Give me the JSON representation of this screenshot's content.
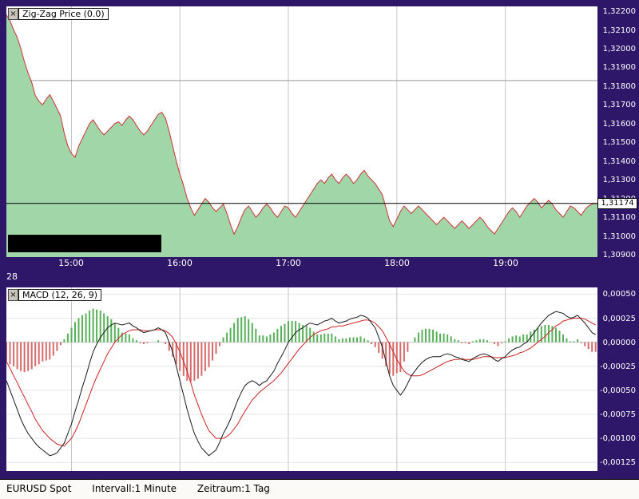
{
  "status_bar": {
    "symbol": "EURUSD Spot",
    "interval": "Intervall:1 Minute",
    "period": "Zeitraum:1 Tag"
  },
  "price_panel": {
    "indicator_label": "Zig-Zag Price (0.0)",
    "close_glyph": "×",
    "current_price_label": "1,31174",
    "date_label": "28"
  },
  "macd_panel": {
    "indicator_label": "MACD (12, 26, 9)",
    "close_glyph": "×"
  },
  "colors": {
    "background_purple": "#2e1769",
    "panel_white": "#ffffff",
    "area_fill": "#a0d6a8",
    "price_line": "#cc3333",
    "hist_up": "#55b057",
    "hist_down": "#d66a6a",
    "grid": "#c6c6c6",
    "grid_light": "#e6e6e6",
    "axis_text": "#ffffff",
    "current_price_line": "#000000"
  },
  "chart_data": [
    {
      "type": "area",
      "title": "Zig-Zag Price (0.0)",
      "symbol": "EURUSD",
      "x_unit": "minutes since 14:24",
      "t_start": 0,
      "t_step": 2,
      "xlim": [
        0,
        327
      ],
      "ylim": [
        1.30887,
        1.32226
      ],
      "last_price": 1.31174,
      "x_ticks": [
        {
          "t": 36,
          "label": "15:00"
        },
        {
          "t": 96,
          "label": "16:00"
        },
        {
          "t": 156,
          "label": "17:00"
        },
        {
          "t": 216,
          "label": "18:00"
        },
        {
          "t": 276,
          "label": "19:00"
        }
      ],
      "y_ticks": [
        1.322,
        1.321,
        1.32,
        1.319,
        1.318,
        1.317,
        1.316,
        1.315,
        1.314,
        1.313,
        1.312,
        1.311,
        1.31,
        1.309
      ],
      "y_tick_labels": [
        "1,32200",
        "1,32100",
        "1,32000",
        "1,31900",
        "1,31800",
        "1,31700",
        "1,31600",
        "1,31500",
        "1,31400",
        "1,31300",
        "1,31200",
        "1,31100",
        "1,31000",
        "1,30900"
      ],
      "hlines": [
        {
          "value": 1.3183,
          "color": "#999999",
          "layer": "below"
        },
        {
          "value": 1.31174,
          "color": "#000000",
          "layer": "above"
        }
      ],
      "price": [
        1.3218,
        1.3215,
        1.321,
        1.3206,
        1.32,
        1.3193,
        1.3187,
        1.3182,
        1.3175,
        1.3172,
        1.317,
        1.3173,
        1.31755,
        1.3172,
        1.3168,
        1.3164,
        1.3155,
        1.3148,
        1.3144,
        1.3142,
        1.3148,
        1.3152,
        1.3156,
        1.316,
        1.3162,
        1.3159,
        1.3156,
        1.3154,
        1.3156,
        1.3158,
        1.316,
        1.3161,
        1.3159,
        1.3162,
        1.3164,
        1.3162,
        1.3159,
        1.3156,
        1.3154,
        1.3156,
        1.3159,
        1.3162,
        1.3165,
        1.3166,
        1.3163,
        1.3156,
        1.3148,
        1.314,
        1.3133,
        1.3127,
        1.312,
        1.3115,
        1.3111,
        1.3114,
        1.3117,
        1.312,
        1.3118,
        1.3115,
        1.3113,
        1.3115,
        1.3117,
        1.3112,
        1.3106,
        1.3101,
        1.3105,
        1.311,
        1.3114,
        1.3116,
        1.3113,
        1.311,
        1.3112,
        1.3115,
        1.3117,
        1.3115,
        1.3112,
        1.311,
        1.3113,
        1.3116,
        1.3115,
        1.3112,
        1.311,
        1.3113,
        1.3116,
        1.3119,
        1.3122,
        1.3125,
        1.3128,
        1.313,
        1.3128,
        1.3131,
        1.3133,
        1.313,
        1.3128,
        1.3131,
        1.3133,
        1.3131,
        1.3128,
        1.313,
        1.3133,
        1.3135,
        1.3132,
        1.313,
        1.3128,
        1.3125,
        1.3122,
        1.3115,
        1.3108,
        1.3105,
        1.3109,
        1.3113,
        1.3116,
        1.3114,
        1.3112,
        1.3114,
        1.3116,
        1.3114,
        1.3112,
        1.311,
        1.3108,
        1.3106,
        1.3108,
        1.311,
        1.3108,
        1.3106,
        1.3104,
        1.3106,
        1.3108,
        1.3106,
        1.3104,
        1.3106,
        1.3108,
        1.311,
        1.3108,
        1.3105,
        1.3103,
        1.3101,
        1.3104,
        1.3107,
        1.311,
        1.3113,
        1.3115,
        1.3113,
        1.311,
        1.3113,
        1.3116,
        1.3118,
        1.312,
        1.3118,
        1.3115,
        1.3117,
        1.3119,
        1.3117,
        1.3114,
        1.3112,
        1.311,
        1.3113,
        1.3116,
        1.3115,
        1.3113,
        1.3111,
        1.3114,
        1.3116,
        1.3117,
        1.31174
      ]
    },
    {
      "type": "line",
      "title": "MACD (12, 26, 9)",
      "params": [
        12,
        26,
        9
      ],
      "histogram_rule": "macd - signal",
      "x_unit": "minutes since 14:24",
      "t_start": 0,
      "t_step": 2,
      "xlim": [
        0,
        327
      ],
      "ylim": [
        -0.00134,
        0.00057
      ],
      "x_ticks": [
        36,
        96,
        156,
        216,
        276
      ],
      "y_ticks": [
        0.0005,
        0.00025,
        0,
        -0.00025,
        -0.0005,
        -0.00075,
        -0.001,
        -0.00125
      ],
      "y_tick_labels": [
        "0,00050",
        "0,00025",
        "0,00000",
        "-0,00025",
        "-0,00050",
        "-0,00075",
        "-0,00100",
        "-0,00125"
      ],
      "series": [
        {
          "name": "MACD line",
          "color": "#1a1a1a",
          "values": [
            -0.0004,
            -0.0005,
            -0.0006,
            -0.0007,
            -0.0008,
            -0.00088,
            -0.00095,
            -0.001,
            -0.00105,
            -0.00109,
            -0.00112,
            -0.00115,
            -0.00118,
            -0.00117,
            -0.00115,
            -0.0011,
            -0.00105,
            -0.00095,
            -0.00085,
            -0.00072,
            -0.0006,
            -0.00047,
            -0.00035,
            -0.00022,
            -0.0001,
            -2e-05,
            5e-05,
            0.0001,
            0.00015,
            0.00018,
            0.0002,
            0.00019,
            0.00018,
            0.00019,
            0.0002,
            0.00017,
            0.00015,
            0.00012,
            0.0001,
            0.00011,
            0.00012,
            0.00013,
            0.00015,
            0.00013,
            0.0001,
            0.0,
            -0.0001,
            -0.00025,
            -0.0004,
            -0.00055,
            -0.0007,
            -0.00083,
            -0.00095,
            -0.00103,
            -0.0011,
            -0.00114,
            -0.00118,
            -0.00115,
            -0.00112,
            -0.00104,
            -0.00095,
            -0.00088,
            -0.0008,
            -0.0007,
            -0.0006,
            -0.00052,
            -0.00045,
            -0.00042,
            -0.0004,
            -0.00042,
            -0.00045,
            -0.00042,
            -0.0004,
            -0.00035,
            -0.0003,
            -0.00022,
            -0.00015,
            -8e-05,
            0.0,
            5e-05,
            0.0001,
            0.00013,
            0.00015,
            0.00018,
            0.0002,
            0.00019,
            0.00018,
            0.0002,
            0.00022,
            0.00023,
            0.00025,
            0.00022,
            0.0002,
            0.00021,
            0.00022,
            0.00024,
            0.00025,
            0.00026,
            0.00028,
            0.00027,
            0.00025,
            0.0002,
            0.00015,
            5e-05,
            -5e-05,
            -0.0002,
            -0.00035,
            -0.00045,
            -0.0005,
            -0.00055,
            -0.0005,
            -0.00043,
            -0.00035,
            -0.0003,
            -0.00025,
            -0.00021,
            -0.00018,
            -0.00016,
            -0.00015,
            -0.00015,
            -0.00015,
            -0.00013,
            -0.00012,
            -0.00013,
            -0.00015,
            -0.00016,
            -0.00018,
            -0.00019,
            -0.0002,
            -0.00017,
            -0.00015,
            -0.00013,
            -0.00012,
            -0.00013,
            -0.00015,
            -0.00018,
            -0.0002,
            -0.00017,
            -0.00015,
            -0.00011,
            -8e-05,
            -6e-05,
            -5e-05,
            -2e-05,
            0.0,
            5e-05,
            0.0001,
            0.00015,
            0.0002,
            0.00024,
            0.00028,
            0.0003,
            0.00032,
            0.00031,
            0.0003,
            0.00027,
            0.00025,
            0.00026,
            0.00028,
            0.00024,
            0.0002,
            0.00015,
            0.0001,
            8e-05
          ]
        },
        {
          "name": "Signal line",
          "color": "#cc2222",
          "values": [
            -0.0002,
            -0.00027,
            -0.00035,
            -0.00042,
            -0.0005,
            -0.00057,
            -0.00065,
            -0.00072,
            -0.0008,
            -0.00086,
            -0.00092,
            -0.00096,
            -0.001,
            -0.00103,
            -0.00106,
            -0.00107,
            -0.00108,
            -0.00104,
            -0.001,
            -0.00093,
            -0.00085,
            -0.00075,
            -0.00065,
            -0.00055,
            -0.00045,
            -0.00036,
            -0.00028,
            -0.0002,
            -0.00012,
            -6e-05,
            0.0,
            4e-05,
            8e-05,
            0.0001,
            0.00012,
            0.00013,
            0.00013,
            0.00013,
            0.00012,
            0.00012,
            0.00012,
            0.00013,
            0.00013,
            0.00013,
            0.00012,
            9e-05,
            5e-05,
            -2e-05,
            -0.0001,
            -0.0002,
            -0.0003,
            -0.00042,
            -0.00055,
            -0.00065,
            -0.00075,
            -0.00084,
            -0.00092,
            -0.00096,
            -0.001,
            -0.001,
            -0.001,
            -0.00098,
            -0.00095,
            -0.0009,
            -0.00085,
            -0.00078,
            -0.00072,
            -0.00066,
            -0.0006,
            -0.00056,
            -0.00052,
            -0.00049,
            -0.00046,
            -0.00043,
            -0.0004,
            -0.00036,
            -0.00032,
            -0.00027,
            -0.00022,
            -0.00017,
            -0.00012,
            -7e-05,
            -3e-05,
            1e-05,
            5e-05,
            8e-05,
            0.0001,
            0.00012,
            0.00013,
            0.00014,
            0.00016,
            0.00016,
            0.00017,
            0.00017,
            0.00018,
            0.00019,
            0.0002,
            0.00021,
            0.00022,
            0.00023,
            0.00023,
            0.00022,
            0.0002,
            0.00016,
            0.00012,
            5e-05,
            -2e-05,
            -0.0001,
            -0.00018,
            -0.00024,
            -0.0003,
            -0.00033,
            -0.00035,
            -0.00035,
            -0.00035,
            -0.00034,
            -0.00032,
            -0.0003,
            -0.00028,
            -0.00026,
            -0.00024,
            -0.00022,
            -0.0002,
            -0.00019,
            -0.00018,
            -0.00018,
            -0.00017,
            -0.00018,
            -0.00018,
            -0.00018,
            -0.00017,
            -0.00016,
            -0.00015,
            -0.00015,
            -0.00015,
            -0.00016,
            -0.00016,
            -0.00016,
            -0.00016,
            -0.00015,
            -0.00014,
            -0.00013,
            -0.00011,
            -0.0001,
            -8e-05,
            -6e-05,
            -3e-05,
            0.0,
            3e-05,
            6e-05,
            0.0001,
            0.00013,
            0.00017,
            0.00019,
            0.00022,
            0.00023,
            0.00024,
            0.00025,
            0.00025,
            0.00025,
            0.00024,
            0.00022,
            0.0002,
            0.00018
          ]
        }
      ]
    }
  ]
}
